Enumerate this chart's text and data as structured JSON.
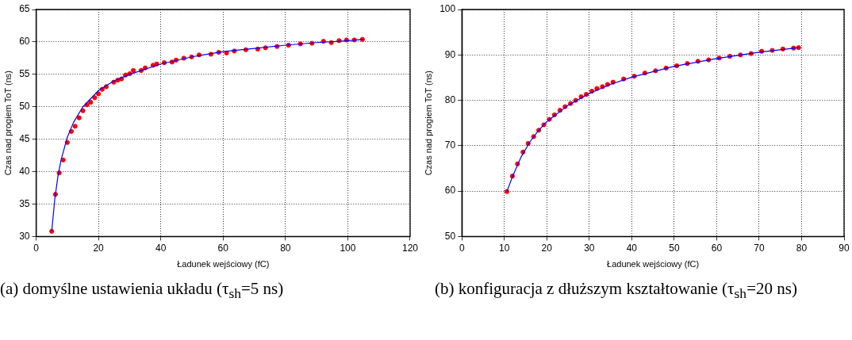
{
  "chart_data": [
    {
      "type": "scatter",
      "xlabel": "Ładunek wejściowy (fC)",
      "ylabel": "Czas nad progiem ToT (ns)",
      "xlim": [
        0,
        120
      ],
      "xticks": [
        0,
        20,
        40,
        60,
        80,
        100,
        120
      ],
      "ylim": [
        30,
        65
      ],
      "yticks": [
        30,
        35,
        40,
        45,
        50,
        55,
        60,
        65
      ],
      "grid": true,
      "legend": false,
      "annotations": [
        "(a) domyślne ustawienia układu (τ$_{sh}$=5 ns)"
      ],
      "series": [
        {
          "type": "scatter",
          "marker": "circle",
          "color": "#ff0000",
          "x": [
            5.0,
            6.2,
            7.4,
            8.7,
            10.0,
            11.3,
            12.5,
            13.8,
            15.0,
            16.3,
            17.5,
            18.8,
            20.0,
            21.2,
            22.5,
            24.9,
            26.2,
            27.4,
            28.7,
            30.0,
            31.2,
            33.7,
            35.0,
            37.5,
            38.7,
            41.1,
            43.6,
            44.9,
            47.4,
            49.9,
            52.3,
            56.1,
            58.6,
            61.1,
            63.6,
            67.3,
            71.1,
            73.6,
            77.3,
            81.0,
            84.8,
            88.5,
            92.2,
            94.7,
            97.2,
            99.6,
            102.1,
            104.7
          ],
          "values": [
            30.8,
            36.5,
            39.8,
            41.8,
            44.5,
            46.2,
            47.0,
            48.3,
            49.4,
            50.3,
            50.7,
            51.4,
            52.0,
            52.7,
            53.1,
            53.8,
            54.1,
            54.3,
            54.9,
            55.1,
            55.6,
            55.6,
            56.0,
            56.4,
            56.6,
            56.8,
            56.9,
            57.2,
            57.5,
            57.7,
            58.0,
            58.1,
            58.4,
            58.3,
            58.6,
            58.8,
            58.9,
            59.1,
            59.3,
            59.5,
            59.7,
            59.8,
            60.1,
            59.9,
            60.2,
            60.3,
            60.3,
            60.4
          ]
        },
        {
          "type": "line",
          "marker": "none",
          "line_style": "solid",
          "color": "#0000ff",
          "x": [
            5,
            6,
            7,
            8,
            10,
            12,
            15,
            20,
            25,
            30,
            40,
            50,
            60,
            70,
            80,
            90,
            100,
            105
          ],
          "values": [
            30.8,
            35.8,
            39.3,
            41.8,
            45.3,
            47.6,
            50.0,
            52.5,
            54.0,
            55.0,
            56.6,
            57.7,
            58.5,
            59.0,
            59.5,
            59.9,
            60.2,
            60.4
          ]
        }
      ]
    },
    {
      "type": "scatter",
      "xlabel": "Ładunek wejściowy (fC)",
      "ylabel": "Czas nad progiem ToT (ns)",
      "xlim": [
        0,
        90
      ],
      "xticks": [
        0,
        10,
        20,
        30,
        40,
        50,
        60,
        70,
        80,
        90
      ],
      "ylim": [
        50,
        100
      ],
      "yticks": [
        50,
        60,
        70,
        80,
        90,
        100
      ],
      "grid": true,
      "legend": false,
      "annotations": [
        "(b) konfiguracja z dłuższym kształtowanie (τ$_{sh}$=20 ns)"
      ],
      "series": [
        {
          "type": "scatter",
          "marker": "circle",
          "color": "#ff0000",
          "x": [
            10.6,
            11.9,
            13.1,
            14.4,
            15.6,
            16.9,
            18.1,
            19.3,
            20.6,
            21.8,
            23.1,
            24.3,
            25.6,
            26.8,
            28.1,
            29.3,
            30.6,
            31.8,
            33.1,
            34.3,
            35.6,
            38.1,
            40.6,
            43.1,
            45.6,
            48.1,
            50.6,
            53.1,
            55.6,
            58.1,
            60.6,
            63.1,
            65.6,
            68.1,
            70.6,
            73.1,
            75.6,
            78.1,
            79.3
          ],
          "values": [
            59.9,
            63.3,
            66.0,
            68.6,
            70.5,
            72.0,
            73.4,
            74.6,
            75.8,
            76.8,
            77.8,
            78.6,
            79.3,
            80.0,
            80.8,
            81.3,
            82.0,
            82.6,
            83.0,
            83.5,
            84.0,
            84.7,
            85.3,
            86.0,
            86.5,
            87.1,
            87.6,
            88.1,
            88.6,
            88.9,
            89.3,
            89.7,
            90.0,
            90.3,
            90.8,
            91.0,
            91.3,
            91.5,
            91.6
          ]
        },
        {
          "type": "line",
          "marker": "none",
          "line_style": "solid",
          "color": "#0000ff",
          "x": [
            10.6,
            12,
            14,
            16,
            18,
            20,
            25,
            30,
            35,
            40,
            50,
            60,
            70,
            79.3
          ],
          "values": [
            59.9,
            63.4,
            67.6,
            70.8,
            73.3,
            75.3,
            78.9,
            81.5,
            83.5,
            85.1,
            87.5,
            89.2,
            90.6,
            91.6
          ]
        }
      ]
    }
  ]
}
